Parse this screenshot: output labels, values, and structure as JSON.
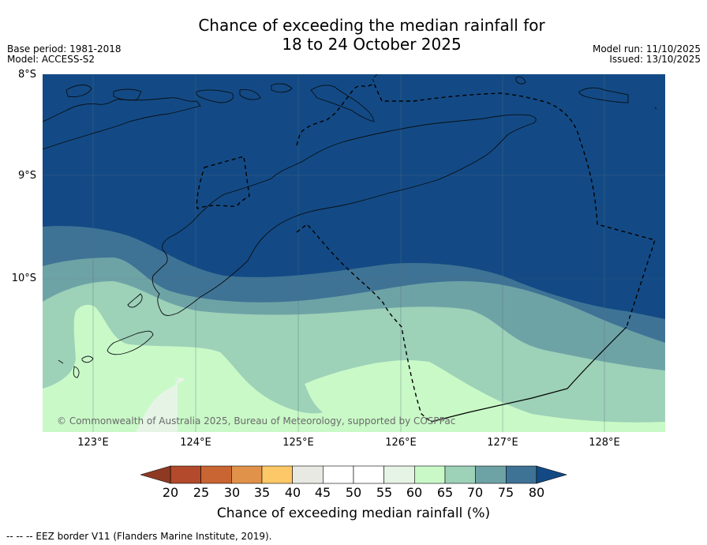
{
  "title": {
    "line1": "Chance of exceeding the median rainfall for",
    "line2": "18 to 24 October 2025"
  },
  "meta": {
    "base_period": "Base period: 1981-2018",
    "model": "Model: ACCESS-S2",
    "model_run": "Model run: 11/10/2025",
    "issued": "Issued: 13/10/2025"
  },
  "map": {
    "lat_labels": [
      "8°S",
      "9°S",
      "10°S"
    ],
    "lon_labels": [
      "123°E",
      "124°E",
      "125°E",
      "126°E",
      "127°E",
      "128°E"
    ],
    "copyright": "© Commonwealth of Australia 2025, Bureau of Meteorology, supported by COSPPac",
    "colors": {
      "band_75_80": "#134a85",
      "band_70_75": "#3f7395",
      "band_65_70": "#6ea3a6",
      "band_60_65": "#9dd1b8",
      "band_55_60": "#c9f9c7",
      "band_50_55": "#e6f4e6"
    }
  },
  "colorbar": {
    "ticks": [
      "20",
      "25",
      "30",
      "35",
      "40",
      "45",
      "50",
      "55",
      "60",
      "65",
      "70",
      "75",
      "80"
    ],
    "colors": [
      "#b24a2b",
      "#c96532",
      "#e1924a",
      "#fdc867",
      "#e9e9e4",
      "#ffffff",
      "#ffffff",
      "#e6f4e6",
      "#c9f9c7",
      "#9dd1b8",
      "#6ea3a6",
      "#3f7395"
    ],
    "low_extend_color": "#8e3a22",
    "high_extend_color": "#134a85",
    "label": "Chance of exceeding median rainfall (%)"
  },
  "footer": "--  --  -- EEZ border V11 (Flanders Marine Institute, 2019)."
}
